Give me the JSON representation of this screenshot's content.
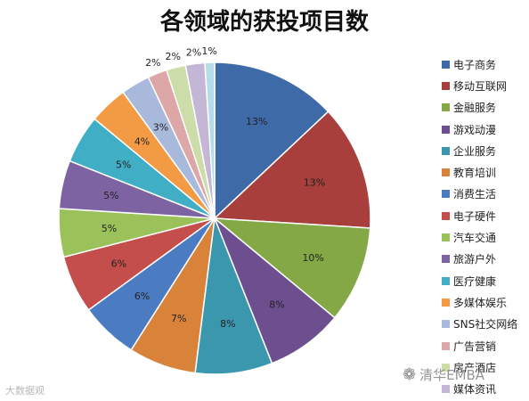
{
  "chart_data": {
    "type": "pie",
    "title": "各领域的获投项目数",
    "series": [
      {
        "name": "电子商务",
        "value": 13,
        "label": "13%",
        "color": "#3F6AA8"
      },
      {
        "name": "移动互联网",
        "value": 13,
        "label": "13%",
        "color": "#A83F3C"
      },
      {
        "name": "金融服务",
        "value": 10,
        "label": "10%",
        "color": "#84A846"
      },
      {
        "name": "游戏动漫",
        "value": 8,
        "label": "8%",
        "color": "#6D4E8F"
      },
      {
        "name": "企业服务",
        "value": 8,
        "label": "8%",
        "color": "#3A97AE"
      },
      {
        "name": "教育培训",
        "value": 7,
        "label": "7%",
        "color": "#D9833A"
      },
      {
        "name": "消费生活",
        "value": 6,
        "label": "6%",
        "color": "#4B7CC2"
      },
      {
        "name": "电子硬件",
        "value": 6,
        "label": "6%",
        "color": "#C44E4B"
      },
      {
        "name": "汽车交通",
        "value": 5,
        "label": "5%",
        "color": "#9BC15A"
      },
      {
        "name": "旅游户外",
        "value": 5,
        "label": "5%",
        "color": "#7E63A3"
      },
      {
        "name": "医疗健康",
        "value": 5,
        "label": "5%",
        "color": "#40AFC6"
      },
      {
        "name": "多媒体娱乐",
        "value": 4,
        "label": "4%",
        "color": "#F39A44"
      },
      {
        "name": "SNS社交网络",
        "value": 3,
        "label": "3%",
        "color": "#A9B9DB"
      },
      {
        "name": "广告营销",
        "value": 2,
        "label": "2%",
        "color": "#DCA7A6"
      },
      {
        "name": "房产酒店",
        "value": 2,
        "label": "2%",
        "color": "#CCDDAA"
      },
      {
        "name": "媒体资讯",
        "value": 2,
        "label": "2%",
        "color": "#C3B7D5"
      },
      {
        "name": "",
        "value": 1,
        "label": "1%",
        "color": "#B5DCE8"
      }
    ],
    "legend_position": "right"
  },
  "watermarks": {
    "left": "大数据观",
    "right": "清华EMBA"
  }
}
